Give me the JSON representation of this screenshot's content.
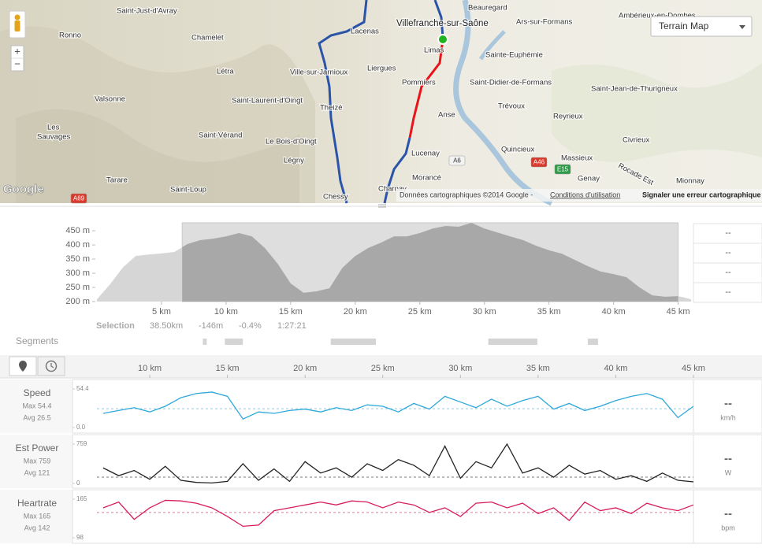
{
  "map": {
    "labels": [
      "Saint-Just-d'Avray",
      "Ronno",
      "Chamelet",
      "Létra",
      "Valsonne",
      "Les",
      "Sauvages",
      "Tarare",
      "Saint-Loup",
      "Saint-Vérand",
      "Le Bois-d'Oingt",
      "Légny",
      "Saint-Laurent-d'Oingt",
      "Ville-sur-Jarnioux",
      "Theizé",
      "Lacenas",
      "Liergues",
      "Pommiers",
      "Limas",
      "Villefranche-sur-Saône",
      "Beauregard",
      "Anse",
      "Lucenay",
      "Morancé",
      "Chessy",
      "Charnay",
      "Ars-sur-Formans",
      "Ambérieux-en-Dombes",
      "Sainte-Euphémie",
      "Saint-Didier-de-Formans",
      "Saint-Jean-de-Thurigneux",
      "Trévoux",
      "Reyrieux",
      "Quincieux",
      "Massieux",
      "Civrieux",
      "Genay",
      "Mionnay"
    ],
    "roads": [
      "A6",
      "A46",
      "E15",
      "A89"
    ],
    "road_name": "Rocade Est",
    "map_type": "Terrain Map",
    "zoom": [
      "+",
      "−"
    ],
    "logo": "Google",
    "attribution": "Données cartographiques ©2014 Google -",
    "terms": "Conditions d'utilisation",
    "report": "Signaler une erreur cartographique"
  },
  "elevation_stats": [
    "--",
    "--",
    "--",
    "--"
  ],
  "selection": {
    "label": "Selection",
    "distance": "38.50km",
    "climb": "-146m",
    "grade": "-0.4%",
    "time": "1:27:21"
  },
  "segments_label": "Segments",
  "chart_data": [
    {
      "type": "area",
      "x": [
        0,
        1,
        2,
        3,
        4,
        5,
        6,
        7,
        8,
        9,
        10,
        11,
        12,
        13,
        14,
        15,
        16,
        17,
        18,
        19,
        20,
        21,
        22,
        23,
        24,
        25,
        26,
        27,
        28,
        29,
        30,
        31,
        32,
        33,
        34,
        35,
        36,
        37,
        38,
        39,
        40,
        41,
        42,
        43,
        44,
        45,
        46
      ],
      "values": [
        208,
        260,
        320,
        361,
        366,
        370,
        375,
        403,
        417,
        422,
        430,
        442,
        430,
        389,
        333,
        264,
        231,
        236,
        247,
        319,
        361,
        389,
        408,
        430,
        430,
        442,
        458,
        467,
        464,
        478,
        458,
        444,
        430,
        417,
        397,
        381,
        369,
        347,
        325,
        306,
        297,
        286,
        250,
        222,
        217,
        219,
        208
      ],
      "color": "#a8a8a8",
      "xlim": [
        0,
        46
      ],
      "ylim": [
        200,
        478
      ],
      "xticks": [
        {
          "value": 5,
          "label": "5 km"
        },
        {
          "value": 10,
          "label": "10 km"
        },
        {
          "value": 15,
          "label": "15 km"
        },
        {
          "value": 20,
          "label": "20 km"
        },
        {
          "value": 25,
          "label": "25 km"
        },
        {
          "value": 30,
          "label": "30 km"
        },
        {
          "value": 35,
          "label": "35 km"
        },
        {
          "value": 40,
          "label": "40 km"
        },
        {
          "value": 45,
          "label": "45 km"
        }
      ],
      "yticks": [
        {
          "value": 200,
          "label": "200 m"
        },
        {
          "value": 250,
          "label": "250 m"
        },
        {
          "value": 300,
          "label": "300 m"
        },
        {
          "value": 350,
          "label": "350 m"
        },
        {
          "value": 400,
          "label": "400 m"
        },
        {
          "value": 450,
          "label": "450 m"
        }
      ],
      "selection": [
        6.6,
        45
      ],
      "segments": [
        [
          8.2,
          8.5
        ],
        [
          9.9,
          11.3
        ],
        [
          18.1,
          21.6
        ],
        [
          30.3,
          34.1
        ],
        [
          38.0,
          38.8
        ]
      ]
    },
    {
      "type": "line",
      "title": "Speed",
      "max_label": "Max 54.4",
      "average": 26.5,
      "average_label": "Avg 26.5",
      "current": "--",
      "unit": "km/h",
      "color": "#2ea8db",
      "x": [
        7,
        8,
        9,
        10,
        11,
        12,
        13,
        14,
        15,
        16,
        17,
        18,
        19,
        20,
        21,
        22,
        23,
        24,
        25,
        26,
        27,
        28,
        29,
        30,
        31,
        32,
        33,
        34,
        35,
        36,
        37,
        38,
        39,
        40,
        41,
        42,
        43,
        44,
        45
      ],
      "values": [
        20,
        24,
        28,
        22,
        30,
        42,
        48,
        50,
        44,
        12,
        22,
        20,
        24,
        26,
        22,
        28,
        24,
        32,
        30,
        22,
        34,
        26,
        44,
        36,
        28,
        40,
        30,
        38,
        44,
        26,
        34,
        24,
        30,
        38,
        44,
        48,
        40,
        14,
        30
      ],
      "xlim": [
        6.6,
        45
      ],
      "ylim": [
        0,
        54.4
      ],
      "yticks": [
        {
          "value": 0,
          "label": "0.0"
        },
        54.4
      ],
      "xticks": [
        {
          "value": 10,
          "label": "10 km"
        },
        {
          "value": 15,
          "label": "15 km"
        },
        {
          "value": 20,
          "label": "20 km"
        },
        {
          "value": 25,
          "label": "25 km"
        },
        {
          "value": 30,
          "label": "30 km"
        },
        {
          "value": 35,
          "label": "35 km"
        },
        {
          "value": 40,
          "label": "40 km"
        },
        {
          "value": 45,
          "label": "45 km"
        }
      ]
    },
    {
      "type": "line",
      "title": "Est Power",
      "max_label": "Max 759",
      "average": 121,
      "average_label": "Avg 121",
      "current": "--",
      "unit": "W",
      "color": "#222222",
      "x": [
        7,
        8,
        9,
        10,
        11,
        12,
        13,
        14,
        15,
        16,
        17,
        18,
        19,
        20,
        21,
        22,
        23,
        24,
        25,
        26,
        27,
        28,
        29,
        30,
        31,
        32,
        33,
        34,
        35,
        36,
        37,
        38,
        39,
        40,
        41,
        42,
        43,
        44,
        45
      ],
      "values": [
        300,
        150,
        250,
        80,
        330,
        60,
        20,
        10,
        40,
        380,
        60,
        280,
        40,
        420,
        200,
        300,
        120,
        380,
        250,
        460,
        350,
        150,
        720,
        100,
        420,
        300,
        759,
        200,
        300,
        120,
        350,
        180,
        250,
        80,
        150,
        40,
        200,
        60,
        30
      ],
      "xlim": [
        6.6,
        45
      ],
      "ylim": [
        0,
        759
      ],
      "yticks": [
        0,
        759
      ]
    },
    {
      "type": "line",
      "title": "Heartrate",
      "max_label": "Max 165",
      "average": 142,
      "average_label": "Avg 142",
      "current": "--",
      "unit": "bpm",
      "color": "#d81b5f",
      "x": [
        7,
        8,
        9,
        10,
        11,
        12,
        13,
        14,
        15,
        16,
        17,
        18,
        19,
        20,
        21,
        22,
        23,
        24,
        25,
        26,
        27,
        28,
        29,
        30,
        31,
        32,
        33,
        34,
        35,
        36,
        37,
        38,
        39,
        40,
        41,
        42,
        43,
        44,
        45
      ],
      "values": [
        150,
        160,
        130,
        150,
        163,
        162,
        158,
        150,
        135,
        118,
        120,
        145,
        150,
        155,
        160,
        155,
        162,
        160,
        150,
        160,
        155,
        142,
        150,
        135,
        158,
        160,
        150,
        158,
        140,
        150,
        128,
        160,
        145,
        150,
        140,
        158,
        150,
        145,
        155
      ],
      "xlim": [
        6.6,
        45
      ],
      "ylim": [
        98,
        165
      ],
      "yticks": [
        98,
        165
      ]
    }
  ]
}
